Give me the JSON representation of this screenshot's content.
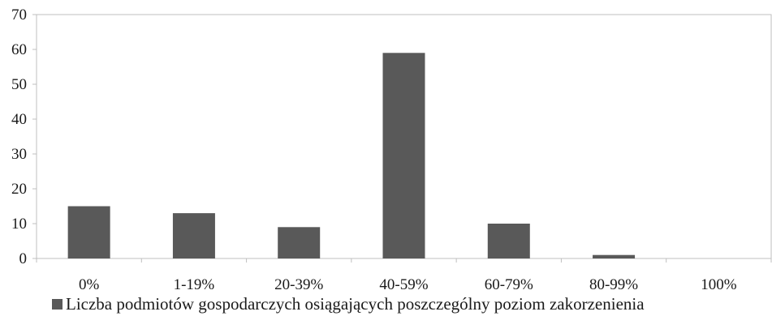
{
  "chart_data": {
    "type": "bar",
    "categories": [
      "0%",
      "1-19%",
      "20-39%",
      "40-59%",
      "60-79%",
      "80-99%",
      "100%"
    ],
    "series": [
      {
        "name": "Liczba podmiotów gospodarczych osiągających poszczególny poziom zakorzenienia",
        "values": [
          15,
          13,
          9,
          59,
          10,
          1,
          0
        ],
        "color": "#595959"
      }
    ],
    "ylim": [
      0,
      70
    ],
    "yticks": [
      "0",
      "10",
      "20",
      "30",
      "40",
      "50",
      "60",
      "70"
    ],
    "grid": false,
    "legend_position": "bottom",
    "title": "",
    "xlabel": "",
    "ylabel": ""
  }
}
